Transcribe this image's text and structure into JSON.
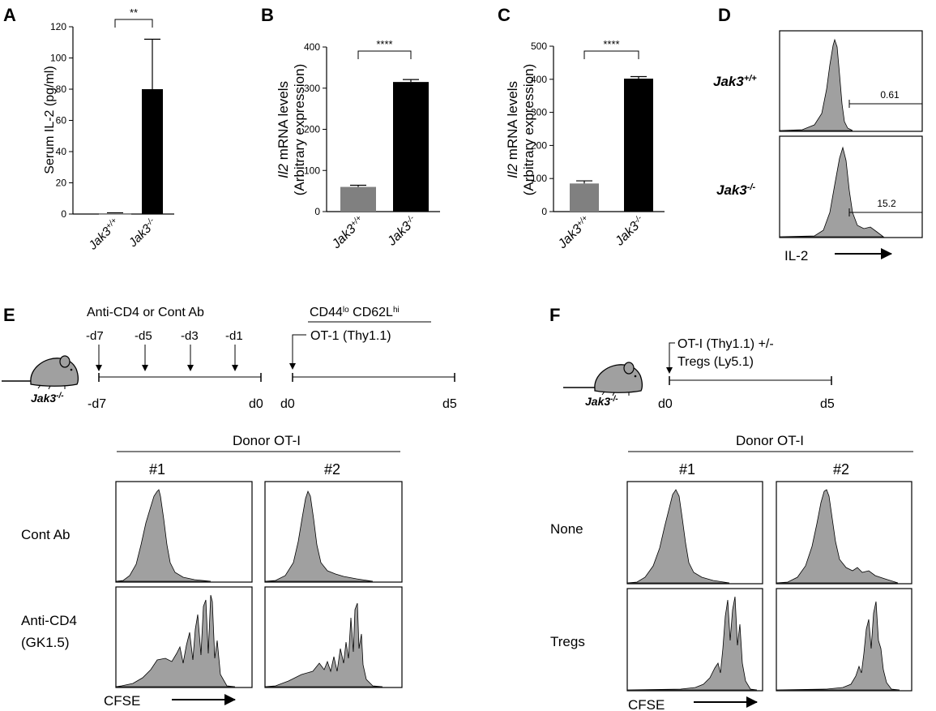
{
  "panels": {
    "A": {
      "letter": "A"
    },
    "B": {
      "letter": "B"
    },
    "C": {
      "letter": "C"
    },
    "D": {
      "letter": "D"
    },
    "E": {
      "letter": "E"
    },
    "F": {
      "letter": "F"
    }
  },
  "colors": {
    "wt_bar": "#808080",
    "ko_bar": "#000000",
    "histogram_fill": "#a0a0a0"
  },
  "chart_data": [
    {
      "id": "A",
      "type": "bar",
      "categories": [
        "Jak3+/+",
        "Jak3-/-"
      ],
      "values": [
        0.5,
        80
      ],
      "errors": [
        0.3,
        32
      ],
      "ylim": [
        0,
        120
      ],
      "yticks": [
        "0",
        "20",
        "40",
        "60",
        "80",
        "100",
        "120"
      ],
      "ylabel": "Serum IL-2 (pg/ml)",
      "significance": "**"
    },
    {
      "id": "B",
      "type": "bar",
      "categories": [
        "Jak3+/+",
        "Jak3-/-"
      ],
      "values": [
        60,
        315
      ],
      "errors": [
        4,
        6
      ],
      "ylim": [
        0,
        400
      ],
      "yticks": [
        "0",
        "100",
        "200",
        "300",
        "400"
      ],
      "ylabel_gene": "Il2",
      "ylabel_rest": " mRNA levels",
      "ylabel_line2": "(Arbitrary expression)",
      "significance": "****"
    },
    {
      "id": "C",
      "type": "bar",
      "categories": [
        "Jak3+/+",
        "Jak3-/-"
      ],
      "values": [
        85,
        402
      ],
      "errors": [
        8,
        6
      ],
      "ylim": [
        0,
        500
      ],
      "yticks": [
        "0",
        "100",
        "200",
        "300",
        "400",
        "500"
      ],
      "ylabel_gene": "Il2",
      "ylabel_rest": " mRNA levels",
      "ylabel_line2": "(Arbitrary expression)",
      "significance": "****"
    }
  ],
  "genotype": {
    "base": "Jak3",
    "wt_sup": "+/+",
    "ko_sup": "-/-"
  },
  "panelD": {
    "row1_value": "0.61",
    "row2_value": "15.2",
    "xlabel": "IL-2"
  },
  "panelE": {
    "treatment_title": "Anti-CD4 or Cont Ab",
    "days": [
      "-d7",
      "-d5",
      "-d3",
      "-d1"
    ],
    "timeline1_start": "-d7",
    "timeline1_end": "d0",
    "cd44": "CD44",
    "cd44_sup": "lo",
    "cd62l": " CD62L",
    "cd62l_sup": "hi",
    "transfer": "OT-1 (Thy1.1)",
    "timeline2_start": "d0",
    "timeline2_end": "d5",
    "donor_header": "Donor OT-I",
    "col1": "#1",
    "col2": "#2",
    "row1": "Cont Ab",
    "row2_line1": "Anti-CD4",
    "row2_line2": "(GK1.5)",
    "xlabel": "CFSE"
  },
  "panelF": {
    "transfer_line1": "OT-I (Thy1.1) +/-",
    "transfer_line2": "Tregs (Ly5.1)",
    "timeline_start": "d0",
    "timeline_end": "d5",
    "donor_header": "Donor OT-I",
    "col1": "#1",
    "col2": "#2",
    "row1": "None",
    "row2": "Tregs",
    "xlabel": "CFSE"
  }
}
